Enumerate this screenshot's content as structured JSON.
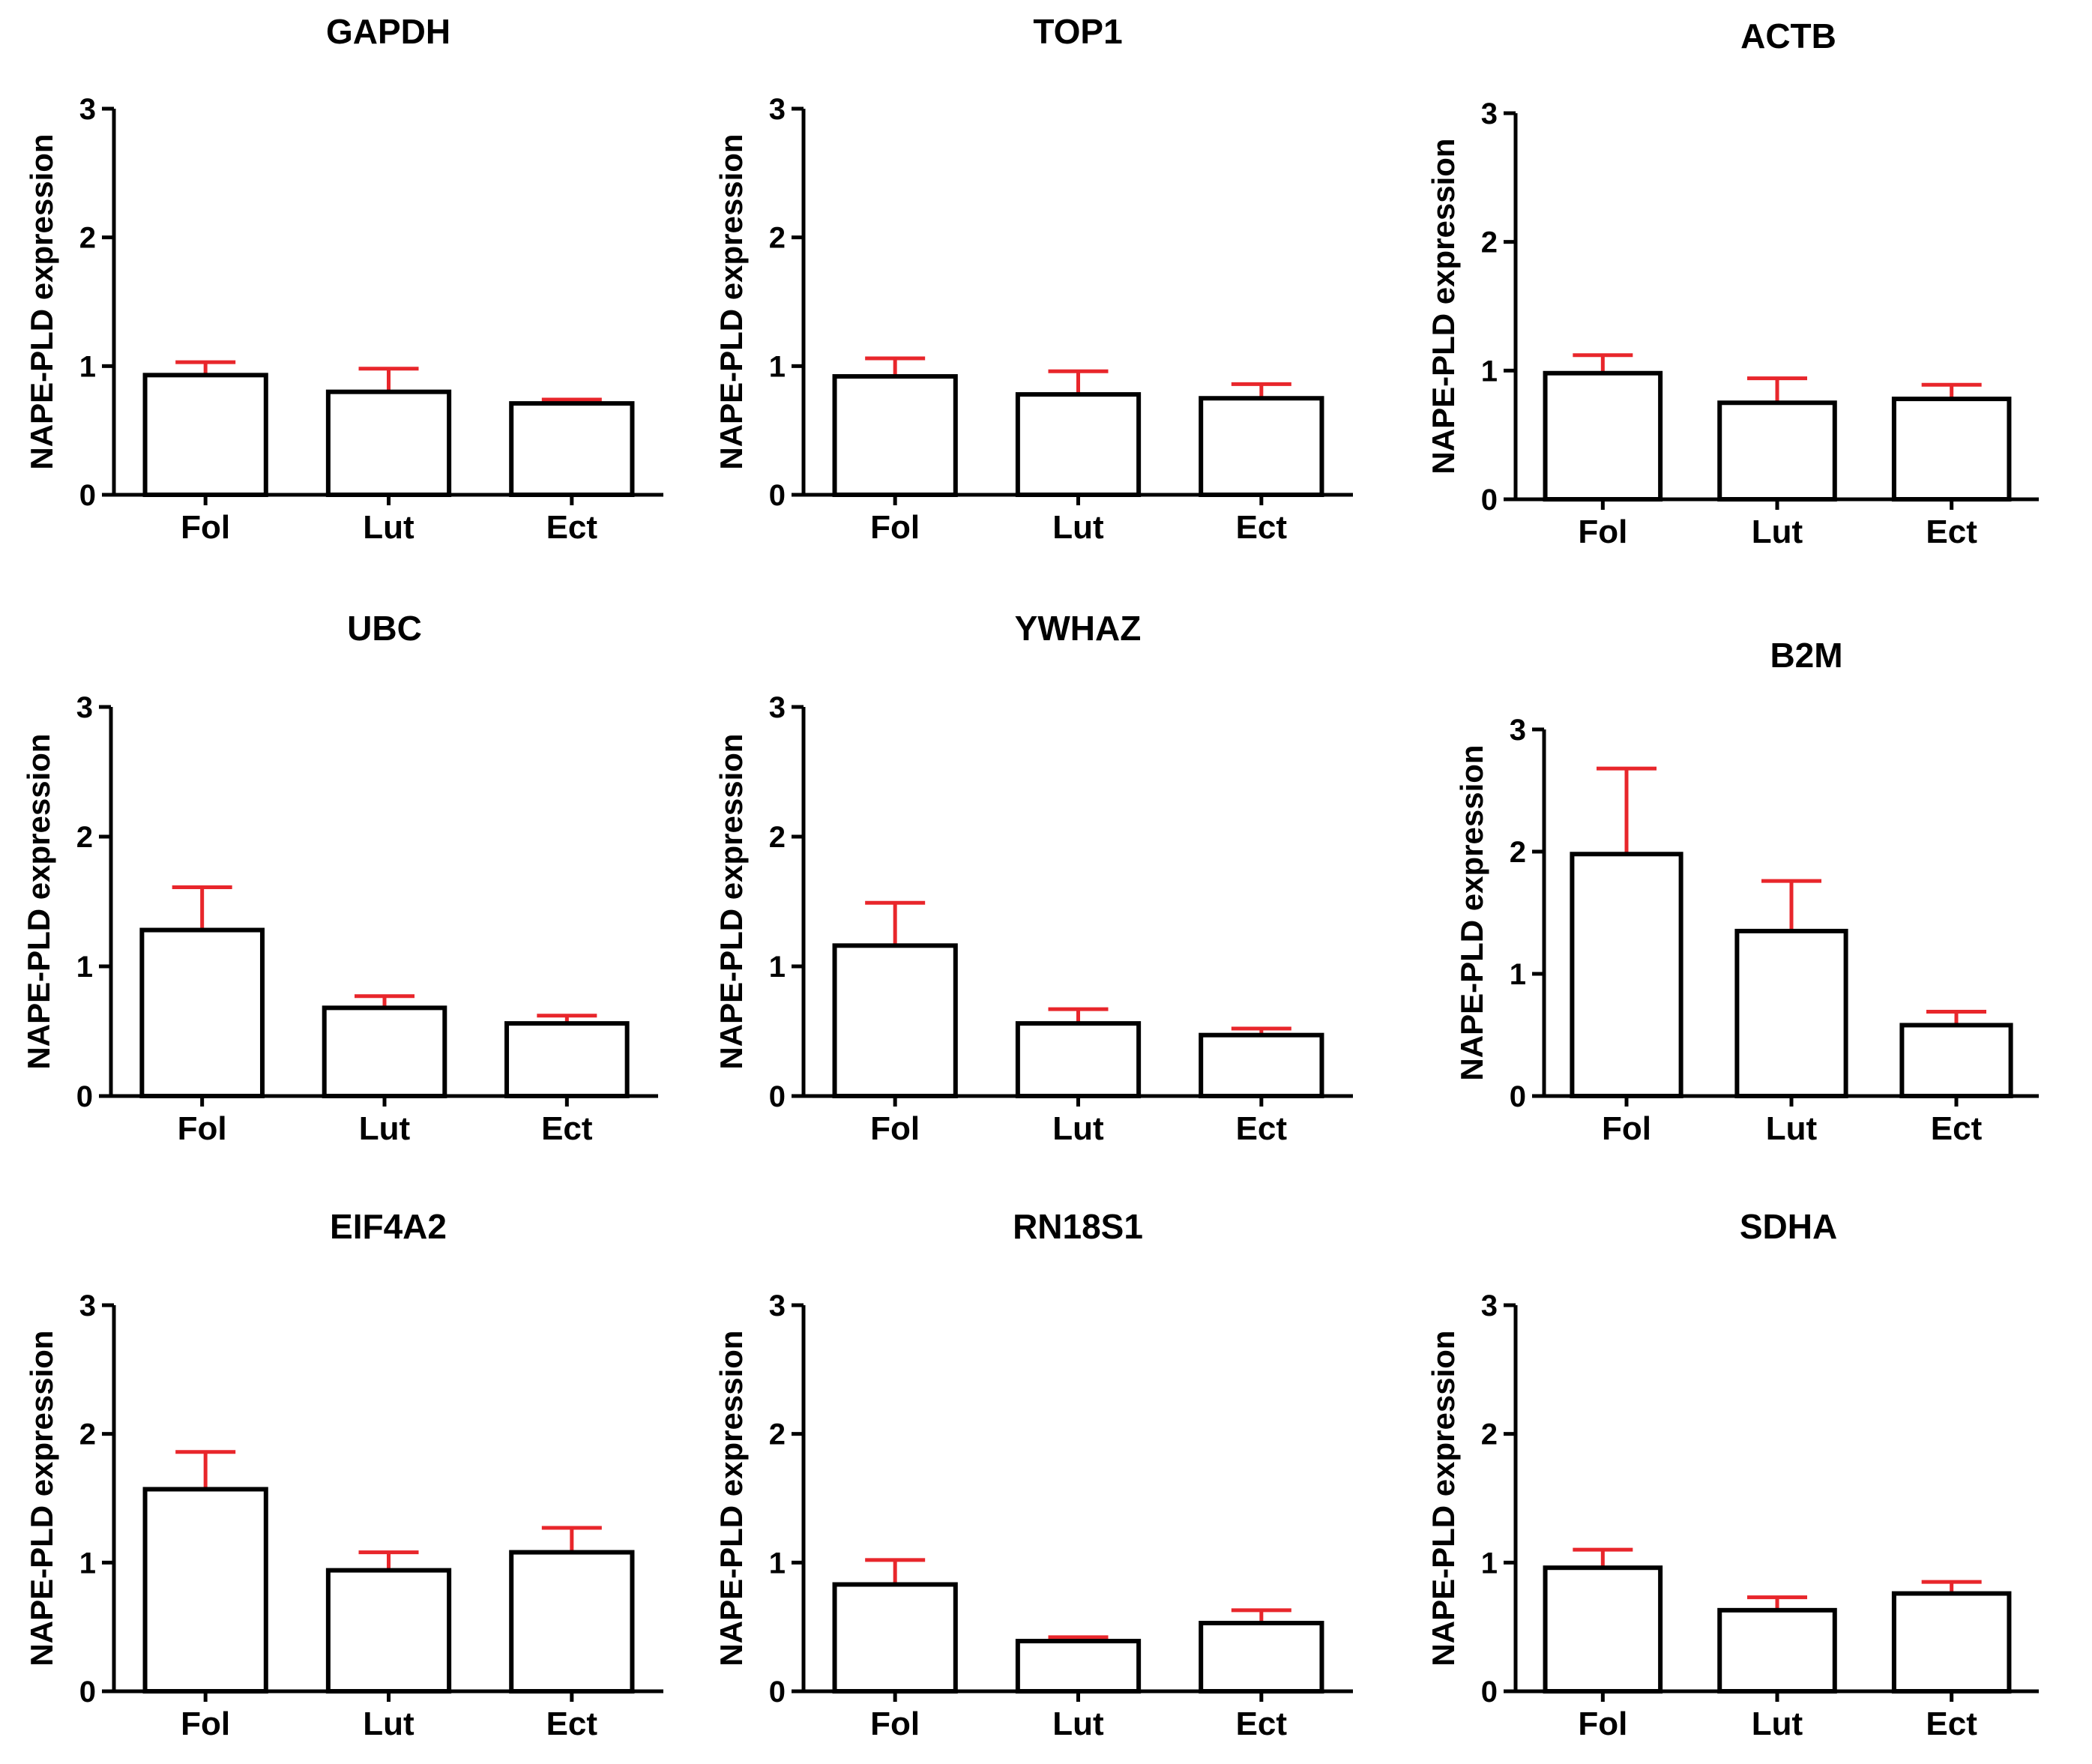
{
  "colors": {
    "bar_fill": "#ffffff",
    "bar_stroke": "#000000",
    "error_bar": "#e8262b",
    "axis": "#000000"
  },
  "chart_data": [
    {
      "type": "bar",
      "title": "GAPDH",
      "ylabel": "NAPE-PLD expression",
      "xlabel": "",
      "categories": [
        "Fol",
        "Lut",
        "Ect"
      ],
      "values": [
        0.93,
        0.8,
        0.71
      ],
      "errors": [
        0.1,
        0.18,
        0.03
      ],
      "ylim": [
        0,
        3
      ],
      "yticks": [
        "0",
        "1",
        "2",
        "3"
      ]
    },
    {
      "type": "bar",
      "title": "TOP1",
      "ylabel": "NAPE-PLD expression",
      "xlabel": "",
      "categories": [
        "Fol",
        "Lut",
        "Ect"
      ],
      "values": [
        0.92,
        0.78,
        0.75
      ],
      "errors": [
        0.14,
        0.18,
        0.11
      ],
      "ylim": [
        0,
        3
      ],
      "yticks": [
        "0",
        "1",
        "2",
        "3"
      ]
    },
    {
      "type": "bar",
      "title": "ACTB",
      "ylabel": "NAPE-PLD expression",
      "xlabel": "",
      "categories": [
        "Fol",
        "Lut",
        "Ect"
      ],
      "values": [
        0.98,
        0.75,
        0.78
      ],
      "errors": [
        0.14,
        0.19,
        0.11
      ],
      "ylim": [
        0,
        3
      ],
      "yticks": [
        "0",
        "1",
        "2",
        "3"
      ]
    },
    {
      "type": "bar",
      "title": "UBC",
      "ylabel": "NAPE-PLD expression",
      "xlabel": "",
      "categories": [
        "Fol",
        "Lut",
        "Ect"
      ],
      "values": [
        1.28,
        0.68,
        0.56
      ],
      "errors": [
        0.33,
        0.09,
        0.06
      ],
      "ylim": [
        0,
        3
      ],
      "yticks": [
        "0",
        "1",
        "2",
        "3"
      ]
    },
    {
      "type": "bar",
      "title": "YWHAZ",
      "ylabel": "NAPE-PLD expression",
      "xlabel": "",
      "categories": [
        "Fol",
        "Lut",
        "Ect"
      ],
      "values": [
        1.16,
        0.56,
        0.47
      ],
      "errors": [
        0.33,
        0.11,
        0.05
      ],
      "ylim": [
        0,
        3
      ],
      "yticks": [
        "0",
        "1",
        "2",
        "3"
      ]
    },
    {
      "type": "bar",
      "title": "B2M",
      "ylabel": "NAPE-PLD expression",
      "xlabel": "",
      "categories": [
        "Fol",
        "Lut",
        "Ect"
      ],
      "values": [
        1.98,
        1.35,
        0.58
      ],
      "errors": [
        0.7,
        0.41,
        0.11
      ],
      "ylim": [
        0,
        3
      ],
      "yticks": [
        "0",
        "1",
        "2",
        "3"
      ]
    },
    {
      "type": "bar",
      "title": "EIF4A2",
      "ylabel": "NAPE-PLD expression",
      "xlabel": "",
      "categories": [
        "Fol",
        "Lut",
        "Ect"
      ],
      "values": [
        1.57,
        0.94,
        1.08
      ],
      "errors": [
        0.29,
        0.14,
        0.19
      ],
      "ylim": [
        0,
        3
      ],
      "yticks": [
        "0",
        "1",
        "2",
        "3"
      ]
    },
    {
      "type": "bar",
      "title": "RN18S1",
      "ylabel": "NAPE-PLD expression",
      "xlabel": "",
      "categories": [
        "Fol",
        "Lut",
        "Ect"
      ],
      "values": [
        0.83,
        0.39,
        0.53
      ],
      "errors": [
        0.19,
        0.03,
        0.1
      ],
      "ylim": [
        0,
        3
      ],
      "yticks": [
        "0",
        "1",
        "2",
        "3"
      ]
    },
    {
      "type": "bar",
      "title": "SDHA",
      "ylabel": "NAPE-PLD expression",
      "xlabel": "",
      "categories": [
        "Fol",
        "Lut",
        "Ect"
      ],
      "values": [
        0.96,
        0.63,
        0.76
      ],
      "errors": [
        0.14,
        0.1,
        0.09
      ],
      "ylim": [
        0,
        3
      ],
      "yticks": [
        "0",
        "1",
        "2",
        "3"
      ]
    }
  ]
}
